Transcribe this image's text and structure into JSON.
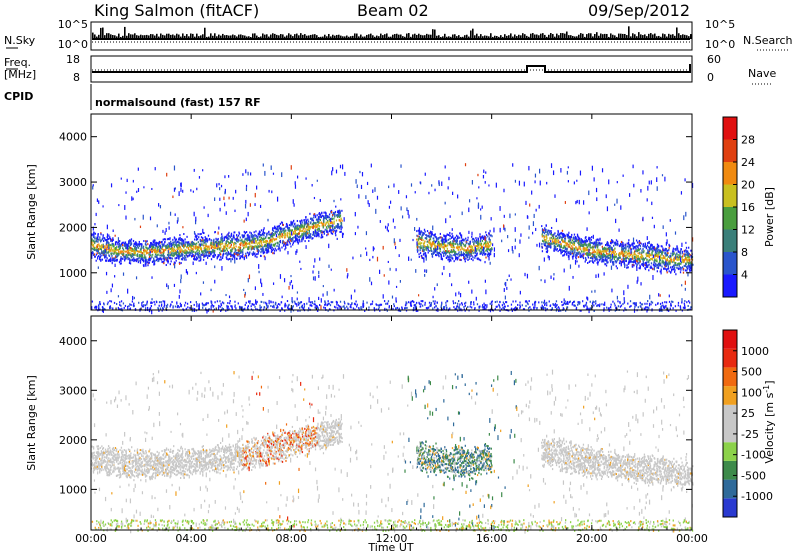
{
  "header": {
    "station": "King Salmon (fitACF)",
    "beam": "Beam 02",
    "date": "09/Sep/2012"
  },
  "panels": {
    "nsky": {
      "label": "N.Sky",
      "ticks": [
        "10^5",
        "10^0"
      ],
      "right_label": "N.Search",
      "right_ticks": [
        "10^5",
        "10^0"
      ]
    },
    "freq": {
      "label": "Freq.",
      "unit": "[MHz]",
      "ticks": [
        "18",
        "8"
      ],
      "right_label": "Nave",
      "right_ticks": [
        "60",
        "0"
      ]
    },
    "cpid": {
      "label": "CPID",
      "text": "normalsound (fast) 157 RF"
    }
  },
  "colors": {
    "power": [
      "#1a1aff",
      "#2a55cc",
      "#3a7f7a",
      "#4a9e3e",
      "#c9c020",
      "#f08a10",
      "#e04010",
      "#e01010"
    ],
    "velocity": [
      "#2a3ad0",
      "#2f6a9a",
      "#3d8a4a",
      "#8cd24a",
      "#c8c8c8",
      "#c8c8c8",
      "#f0a020",
      "#f06a10",
      "#e82a10",
      "#e01010"
    ]
  },
  "chart_data": [
    {
      "type": "heatmap",
      "title": "",
      "xlabel": "",
      "ylabel": "Slant Range [km]",
      "x_ticks": [
        "00:00",
        "04:00",
        "08:00",
        "12:00",
        "16:00",
        "20:00",
        "00:00"
      ],
      "xlim_hours": [
        0,
        24
      ],
      "ylim": [
        180,
        4500
      ],
      "y_ticks": [
        1000,
        2000,
        3000,
        4000
      ],
      "colorbar": {
        "label": "Power [dB]",
        "range": [
          0,
          32
        ],
        "ticks": [
          4,
          8,
          12,
          16,
          20,
          24,
          28
        ]
      },
      "series": [
        {
          "x": [
            0,
            1,
            2,
            3,
            4,
            5,
            6,
            7,
            8,
            9,
            10
          ],
          "y": [
            1650,
            1500,
            1470,
            1500,
            1560,
            1600,
            1620,
            1700,
            1900,
            2050,
            2200
          ]
        },
        {
          "x": [
            13,
            14,
            15,
            16
          ],
          "y": [
            1700,
            1600,
            1550,
            1650
          ]
        },
        {
          "x": [
            18,
            19,
            20,
            21,
            22,
            23,
            24
          ],
          "y": [
            1800,
            1650,
            1500,
            1450,
            1400,
            1330,
            1300
          ]
        }
      ]
    },
    {
      "type": "heatmap",
      "title": "",
      "xlabel": "Time UT",
      "ylabel": "Slant Range [km]",
      "x_ticks": [
        "00:00",
        "04:00",
        "08:00",
        "12:00",
        "16:00",
        "20:00",
        "00:00"
      ],
      "xlim_hours": [
        0,
        24
      ],
      "ylim": [
        180,
        4500
      ],
      "y_ticks": [
        1000,
        2000,
        3000,
        4000
      ],
      "colorbar": {
        "label": "Velocity [m s^-1]",
        "ticks": [
          "1000",
          "500",
          "100",
          "25",
          "-25",
          "-100",
          "-500",
          "-1000"
        ]
      },
      "series": [
        {
          "x": [
            0,
            2,
            4,
            6,
            8,
            10
          ],
          "y": [
            1650,
            1520,
            1580,
            1680,
            1950,
            2200
          ]
        },
        {
          "x": [
            13,
            14,
            15,
            16
          ],
          "y": [
            1700,
            1600,
            1550,
            1650
          ]
        },
        {
          "x": [
            18,
            20,
            22,
            24
          ],
          "y": [
            1800,
            1550,
            1420,
            1300
          ]
        }
      ]
    }
  ]
}
